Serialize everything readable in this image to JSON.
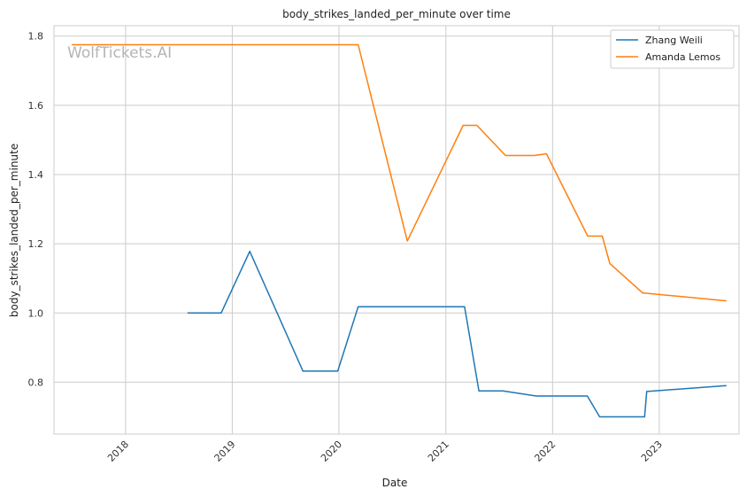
{
  "watermark": "WolfTickets.AI",
  "chart_data": {
    "type": "line",
    "title": "body_strikes_landed_per_minute over time",
    "xlabel": "Date",
    "ylabel": "body_strikes_landed_per_minute",
    "x_axis_type": "date",
    "xlim": [
      "2017-05-01",
      "2023-10-01"
    ],
    "ylim": [
      0.65,
      1.83
    ],
    "x_ticks": [
      {
        "date": "2018-01-01",
        "label": "2018"
      },
      {
        "date": "2019-01-01",
        "label": "2019"
      },
      {
        "date": "2020-01-01",
        "label": "2020"
      },
      {
        "date": "2021-01-01",
        "label": "2021"
      },
      {
        "date": "2022-01-01",
        "label": "2022"
      },
      {
        "date": "2023-01-01",
        "label": "2023"
      }
    ],
    "y_ticks": [
      0.8,
      1.0,
      1.2,
      1.4,
      1.6,
      1.8
    ],
    "grid": true,
    "legend_position": "top-right",
    "series": [
      {
        "name": "Zhang Weili",
        "color": "#1f77b4",
        "points": [
          {
            "x": "2018-08-01",
            "y": 1.0
          },
          {
            "x": "2018-11-24",
            "y": 1.0
          },
          {
            "x": "2019-03-02",
            "y": 1.178
          },
          {
            "x": "2019-08-31",
            "y": 0.832
          },
          {
            "x": "2019-12-28",
            "y": 0.832
          },
          {
            "x": "2020-03-07",
            "y": 1.018
          },
          {
            "x": "2021-03-06",
            "y": 1.018
          },
          {
            "x": "2021-04-24",
            "y": 0.775
          },
          {
            "x": "2021-07-15",
            "y": 0.775
          },
          {
            "x": "2021-11-06",
            "y": 0.76
          },
          {
            "x": "2022-04-30",
            "y": 0.76
          },
          {
            "x": "2022-06-11",
            "y": 0.7
          },
          {
            "x": "2022-11-12",
            "y": 0.7
          },
          {
            "x": "2022-11-19",
            "y": 0.773
          },
          {
            "x": "2023-08-19",
            "y": 0.79
          }
        ]
      },
      {
        "name": "Amanda Lemos",
        "color": "#ff7f0e",
        "points": [
          {
            "x": "2017-07-01",
            "y": 1.775
          },
          {
            "x": "2020-03-07",
            "y": 1.775
          },
          {
            "x": "2020-08-22",
            "y": 1.208
          },
          {
            "x": "2021-03-01",
            "y": 1.542
          },
          {
            "x": "2021-04-17",
            "y": 1.542
          },
          {
            "x": "2021-07-24",
            "y": 1.455
          },
          {
            "x": "2021-10-30",
            "y": 1.455
          },
          {
            "x": "2021-12-11",
            "y": 1.46
          },
          {
            "x": "2022-05-01",
            "y": 1.222
          },
          {
            "x": "2022-06-20",
            "y": 1.222
          },
          {
            "x": "2022-07-16",
            "y": 1.143
          },
          {
            "x": "2022-11-05",
            "y": 1.058
          },
          {
            "x": "2023-08-19",
            "y": 1.035
          }
        ]
      }
    ]
  }
}
